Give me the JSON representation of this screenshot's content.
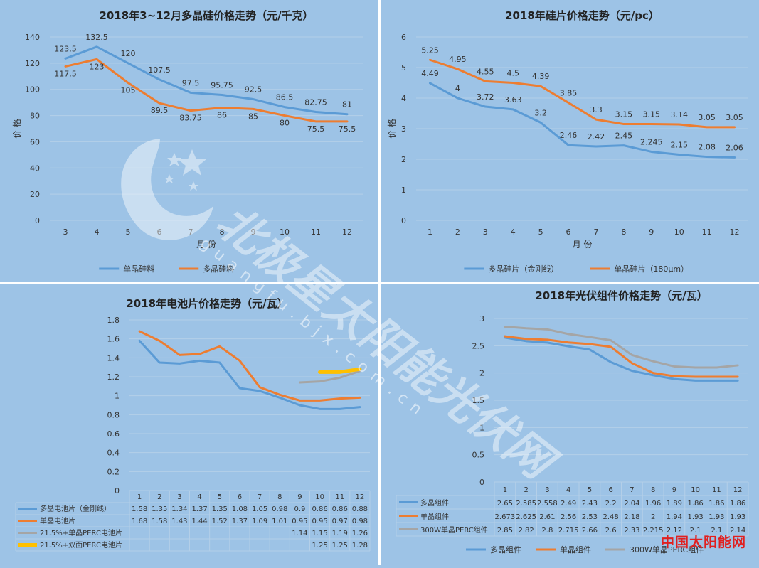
{
  "colors": {
    "bg": "#9dc3e6",
    "blue": "#5b9bd5",
    "orange": "#ed7d31",
    "gray": "#a5a5a5",
    "yellow": "#ffc000",
    "grid": "#b4cfe8",
    "text": "#333333"
  },
  "watermark": {
    "text": "北极星太阳能光伏网",
    "url": "guangfu.bjx.com.cn"
  },
  "brand": "中国太阳能网",
  "chart_data": [
    {
      "type": "line",
      "title": "2018年3~12月多晶硅价格走势（元/千克）",
      "xlabel": "月 份",
      "ylabel": "价 格",
      "categories": [
        "3",
        "4",
        "5",
        "6",
        "7",
        "8",
        "9",
        "10",
        "11",
        "12"
      ],
      "ylim": [
        0,
        140
      ],
      "yticks": [
        0,
        20,
        40,
        60,
        80,
        100,
        120,
        140
      ],
      "grid": true,
      "legend": "bottom",
      "series": [
        {
          "name": "单晶硅料",
          "color": "blue",
          "values": [
            123.5,
            132.5,
            120,
            107.5,
            97.5,
            95.75,
            92.5,
            86.5,
            82.75,
            81
          ],
          "labels": [
            "123.5",
            "132.5",
            "120",
            "107.5",
            "97.5",
            "95.75",
            "92.5",
            "86.5",
            "82.75",
            "81"
          ]
        },
        {
          "name": "多晶硅料",
          "color": "orange",
          "values": [
            117.5,
            123,
            105,
            89.5,
            83.75,
            86,
            85,
            80,
            75.5,
            75.5
          ],
          "labels": [
            "117.5",
            "123",
            "105",
            "89.5",
            "83.75",
            "86",
            "85",
            "80",
            "75.5",
            "75.5"
          ]
        }
      ]
    },
    {
      "type": "line",
      "title": "2018年硅片价格走势（元/pc）",
      "xlabel": "月 份",
      "ylabel": "价 格",
      "categories": [
        "1",
        "2",
        "3",
        "4",
        "5",
        "6",
        "7",
        "8",
        "9",
        "10",
        "11",
        "12"
      ],
      "ylim": [
        0,
        6
      ],
      "yticks": [
        0,
        1,
        2,
        3,
        4,
        5,
        6
      ],
      "grid": true,
      "legend": "bottom",
      "series": [
        {
          "name": "多晶硅片（金刚线）",
          "color": "blue",
          "values": [
            4.49,
            4,
            3.72,
            3.63,
            3.2,
            2.46,
            2.42,
            2.45,
            2.245,
            2.15,
            2.08,
            2.06
          ],
          "labels": [
            "4.49",
            "4",
            "3.72",
            "3.63",
            "3.2",
            "2.46",
            "2.42",
            "2.45",
            "2.245",
            "2.15",
            "2.08",
            "2.06"
          ]
        },
        {
          "name": "单晶硅片（180μm）",
          "color": "orange",
          "values": [
            5.25,
            4.95,
            4.55,
            4.5,
            4.39,
            3.85,
            3.3,
            3.15,
            3.15,
            3.14,
            3.05,
            3.05
          ],
          "labels": [
            "5.25",
            "4.95",
            "4.55",
            "4.5",
            "4.39",
            "3.85",
            "3.3",
            "3.15",
            "3.15",
            "3.14",
            "3.05",
            "3.05"
          ]
        }
      ]
    },
    {
      "type": "line",
      "title": "2018年电池片价格走势（元/瓦）",
      "categories": [
        "1",
        "2",
        "3",
        "4",
        "5",
        "6",
        "7",
        "8",
        "9",
        "10",
        "11",
        "12"
      ],
      "ylim": [
        0,
        1.8
      ],
      "yticks": [
        0,
        0.2,
        0.4,
        0.6,
        0.8,
        1,
        1.2,
        1.4,
        1.6,
        1.8
      ],
      "grid": true,
      "legend": "data-table",
      "series": [
        {
          "name": "多晶电池片（金刚线）",
          "color": "blue",
          "values": [
            1.58,
            1.35,
            1.34,
            1.37,
            1.35,
            1.08,
            1.05,
            0.98,
            0.9,
            0.86,
            0.86,
            0.88
          ],
          "labels": [
            "1.58",
            "1.35",
            "1.34",
            "1.37",
            "1.35",
            "1.08",
            "1.05",
            "0.98",
            "0.9",
            "0.86",
            "0.86",
            "0.88"
          ]
        },
        {
          "name": "单晶电池片",
          "color": "orange",
          "values": [
            1.68,
            1.58,
            1.43,
            1.44,
            1.52,
            1.37,
            1.09,
            1.01,
            0.95,
            0.95,
            0.97,
            0.98
          ],
          "labels": [
            "1.68",
            "1.58",
            "1.43",
            "1.44",
            "1.52",
            "1.37",
            "1.09",
            "1.01",
            "0.95",
            "0.95",
            "0.97",
            "0.98"
          ]
        },
        {
          "name": "21.5%+单晶PERC电池片",
          "color": "gray",
          "values": [
            null,
            null,
            null,
            null,
            null,
            null,
            null,
            null,
            1.14,
            1.15,
            1.19,
            1.26
          ],
          "labels": [
            "",
            "",
            "",
            "",
            "",
            "",
            "",
            "",
            "1.14",
            "1.15",
            "1.19",
            "1.26"
          ]
        },
        {
          "name": "21.5%+双面PERC电池片",
          "color": "yellow",
          "values": [
            null,
            null,
            null,
            null,
            null,
            null,
            null,
            null,
            null,
            1.25,
            1.25,
            1.28
          ],
          "labels": [
            "",
            "",
            "",
            "",
            "",
            "",
            "",
            "",
            "",
            "1.25",
            "1.25",
            "1.28"
          ]
        }
      ]
    },
    {
      "type": "line",
      "title": "2018年光伏组件价格走势（元/瓦）",
      "categories": [
        "1",
        "2",
        "3",
        "4",
        "5",
        "6",
        "7",
        "8",
        "9",
        "10",
        "11",
        "12"
      ],
      "ylim": [
        0,
        3
      ],
      "yticks": [
        0,
        0.5,
        1,
        1.5,
        2,
        2.5,
        3
      ],
      "grid": true,
      "legend": "bottom",
      "series": [
        {
          "name": "多晶组件",
          "color": "blue",
          "values": [
            2.65,
            2.585,
            2.558,
            2.49,
            2.43,
            2.2,
            2.04,
            1.96,
            1.89,
            1.86,
            1.86,
            1.86
          ],
          "labels": [
            "2.65",
            "2.585",
            "2.558",
            "2.49",
            "2.43",
            "2.2",
            "2.04",
            "1.96",
            "1.89",
            "1.86",
            "1.86",
            "1.86"
          ]
        },
        {
          "name": "单晶组件",
          "color": "orange",
          "values": [
            2.673,
            2.625,
            2.61,
            2.56,
            2.53,
            2.48,
            2.18,
            2,
            1.94,
            1.93,
            1.93,
            1.93
          ],
          "labels": [
            "2.673",
            "2.625",
            "2.61",
            "2.56",
            "2.53",
            "2.48",
            "2.18",
            "2",
            "1.94",
            "1.93",
            "1.93",
            "1.93"
          ]
        },
        {
          "name": "300W单晶PERC组件",
          "color": "gray",
          "values": [
            2.85,
            2.82,
            2.8,
            2.715,
            2.66,
            2.6,
            2.33,
            2.215,
            2.12,
            2.1,
            2.1,
            2.14
          ],
          "labels": [
            "2.85",
            "2.82",
            "2.8",
            "2.715",
            "2.66",
            "2.6",
            "2.33",
            "2.215",
            "2.12",
            "2.1",
            "2.1",
            "2.14"
          ]
        }
      ]
    }
  ]
}
